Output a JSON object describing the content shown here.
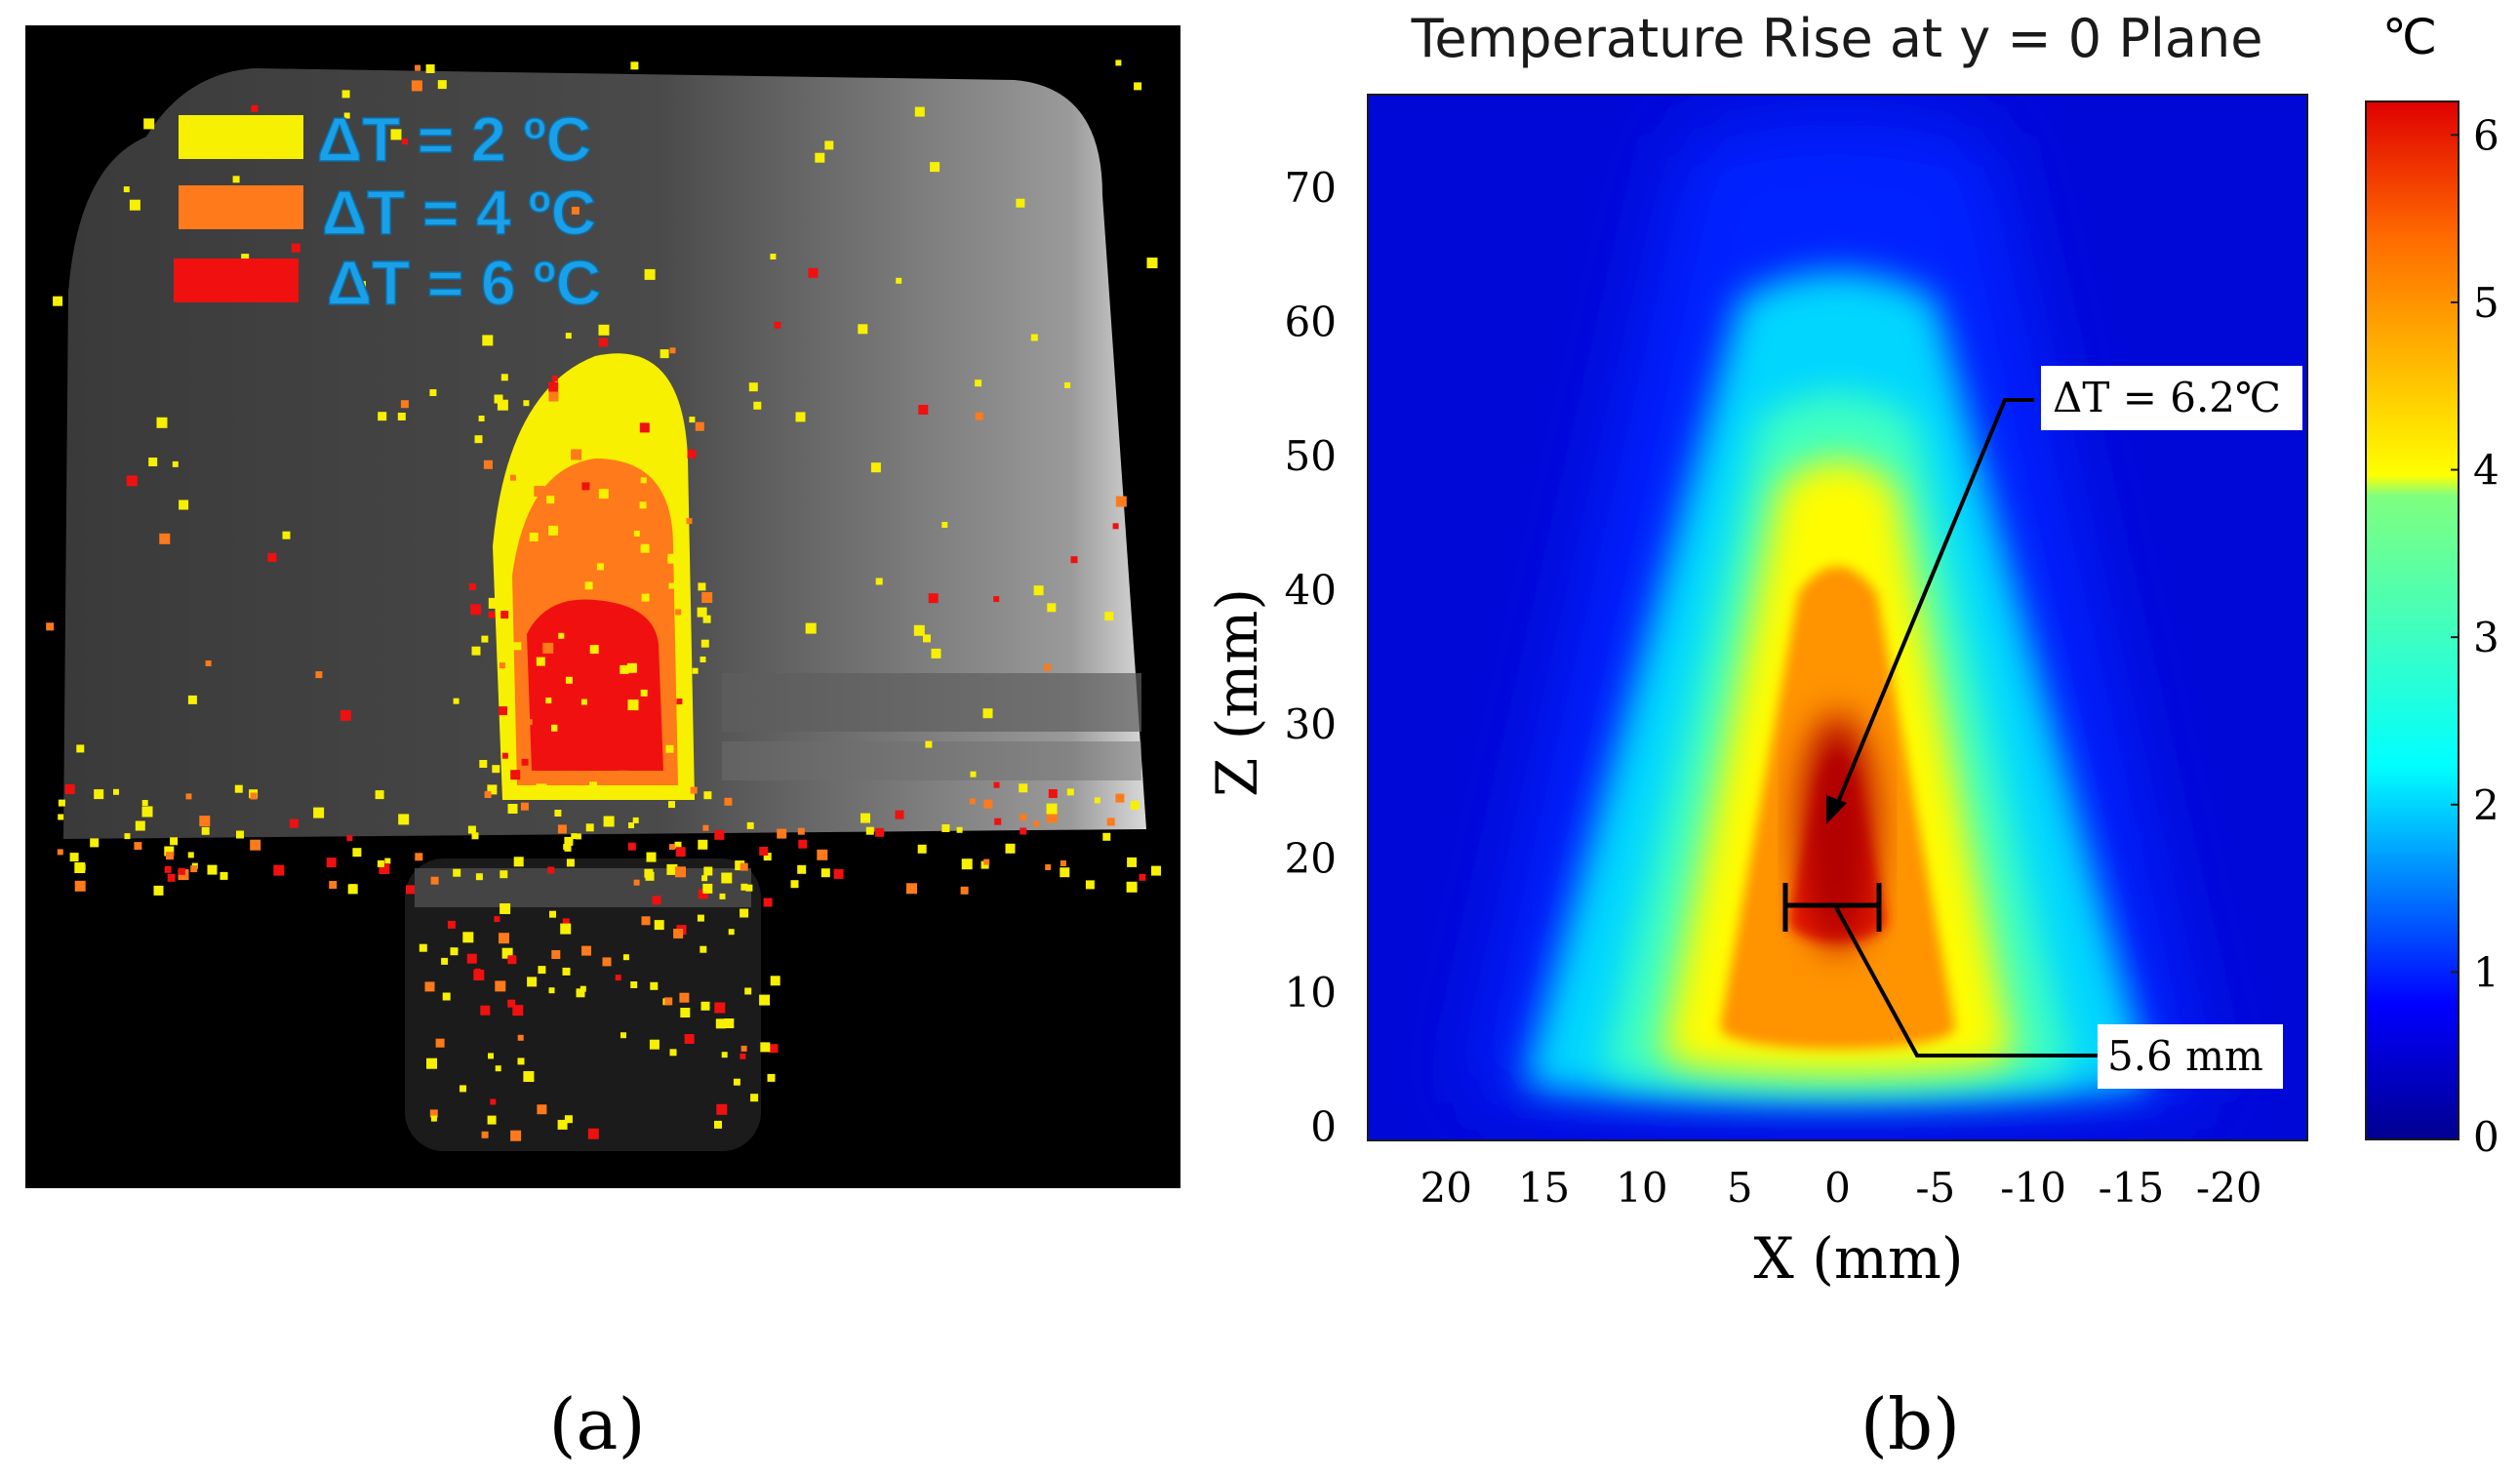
{
  "panel_a": {
    "label": "(a)",
    "legend": [
      {
        "text": "ΔT = 2 ºC",
        "color": "#f7f000"
      },
      {
        "text": "ΔT = 4 ºC",
        "color": "#ff7a1a"
      },
      {
        "text": "ΔT = 6 ºC",
        "color": "#f01010"
      }
    ],
    "legend_text_color": "#1aa0e8"
  },
  "panel_b": {
    "label": "(b)",
    "colorbar_unit": "℃",
    "annotations": {
      "peak": "ΔT = 6.2℃",
      "width": "5.6 mm"
    }
  },
  "chart_data": [
    {
      "type": "heatmap",
      "title": "Temperature Rise at y = 0 Plane",
      "xlabel": "X (mm)",
      "ylabel": "Z (mm)",
      "x_ticks": [
        20,
        15,
        10,
        5,
        0,
        -5,
        -10,
        -15,
        -20
      ],
      "x_tick_labels": [
        "20",
        "15",
        "10",
        "5",
        "0",
        "-5",
        "-10",
        "-15",
        "-20"
      ],
      "y_ticks": [
        0,
        10,
        20,
        30,
        40,
        50,
        60,
        70
      ],
      "y_tick_labels": [
        "0",
        "10",
        "20",
        "30",
        "40",
        "50",
        "60",
        "70"
      ],
      "xlim": [
        24,
        -24
      ],
      "ylim": [
        -1,
        77
      ],
      "colorbar": {
        "label": "℃",
        "range": [
          0,
          6.2
        ],
        "ticks": [
          0,
          1,
          2,
          3,
          4,
          5,
          6
        ],
        "tick_labels": [
          "0",
          "1",
          "2",
          "3",
          "4",
          "5",
          "6"
        ]
      },
      "peak": {
        "x": 0,
        "z": 22,
        "value": 6.2
      },
      "focal_width_mm": 5.6,
      "focal_width_z": 20,
      "contour_levels": [
        {
          "value": 1,
          "half_width_bottom": 19,
          "half_width_top": 8,
          "z_bottom": 1,
          "z_top": 76
        },
        {
          "value": 2,
          "half_width_bottom": 16,
          "half_width_top": 5,
          "z_bottom": 2,
          "z_top": 64
        },
        {
          "value": 3,
          "half_width_bottom": 12,
          "half_width_top": 4,
          "z_bottom": 3,
          "z_top": 55
        },
        {
          "value": 4,
          "half_width_bottom": 9,
          "half_width_top": 3,
          "z_bottom": 4,
          "z_top": 50
        },
        {
          "value": 5,
          "half_width_bottom": 6,
          "half_width_top": 2,
          "z_bottom": 6,
          "z_top": 42
        },
        {
          "value": 6,
          "half_width_bottom": 2.5,
          "half_width_top": 1,
          "z_bottom": 14,
          "z_top": 28
        }
      ]
    }
  ]
}
